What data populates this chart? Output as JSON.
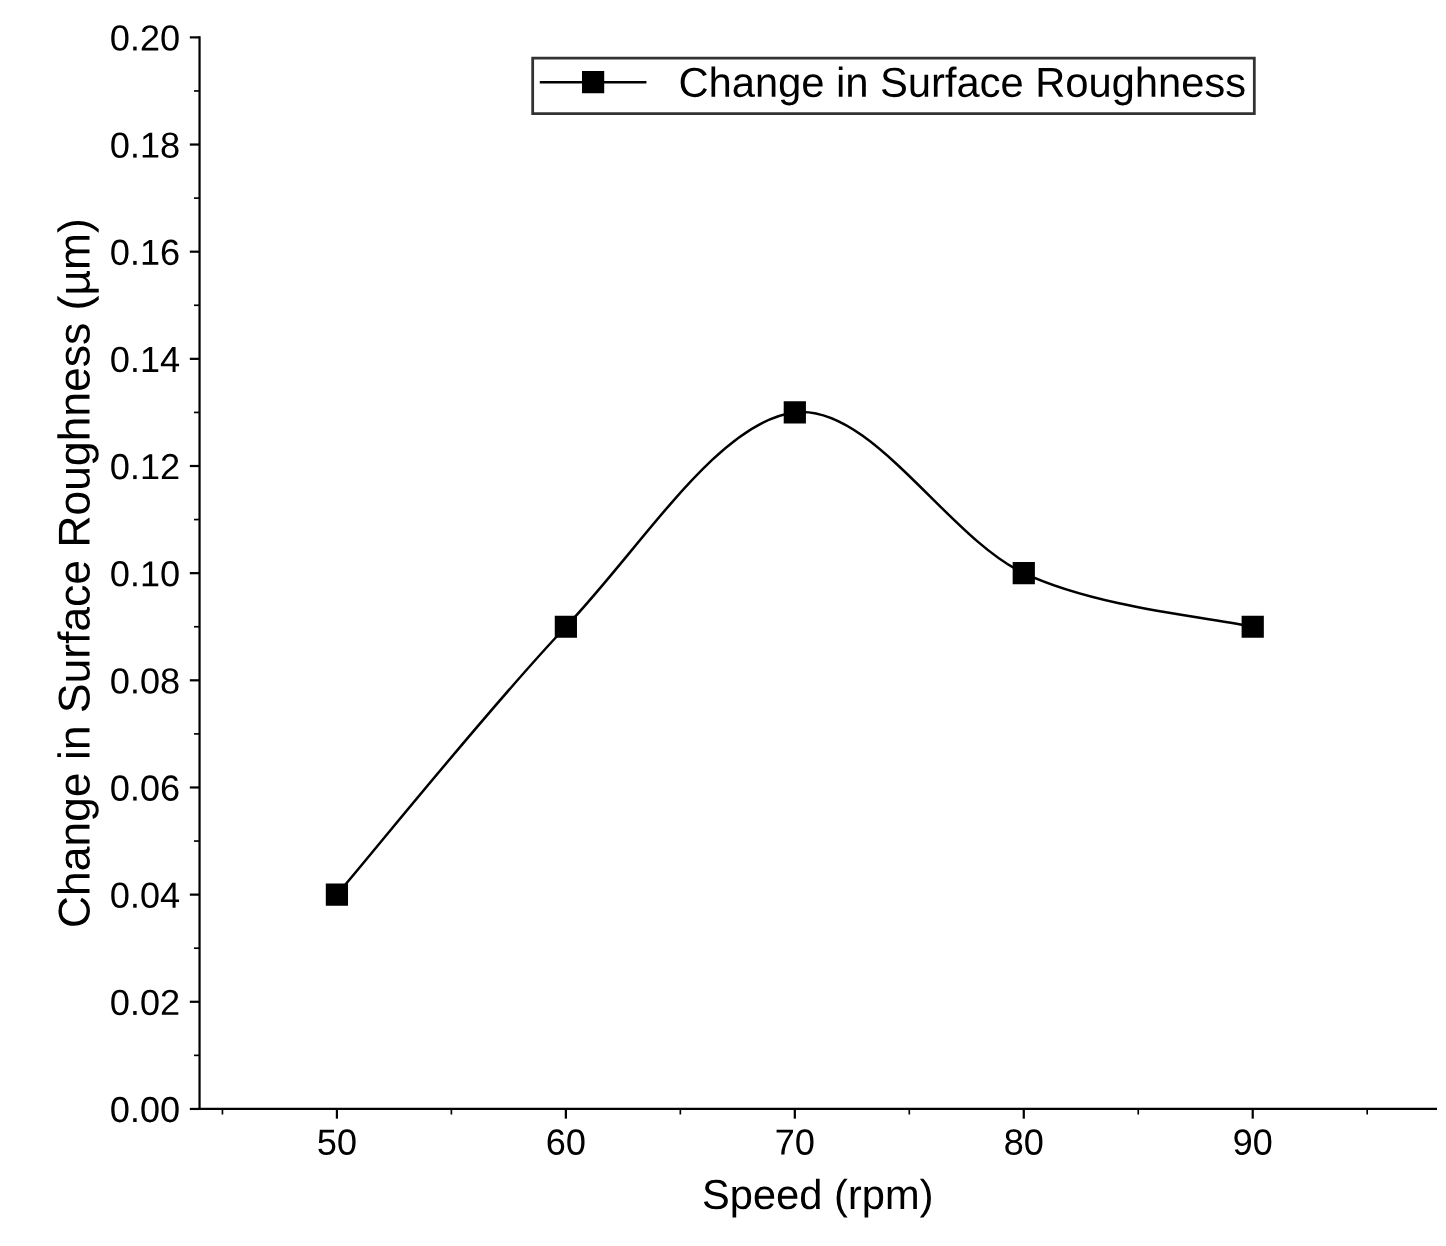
{
  "chart_data": {
    "type": "line",
    "xlabel": "Speed (rpm)",
    "ylabel": "Change in Surface Roughness (µm)",
    "x": [
      50,
      60,
      70,
      80,
      90
    ],
    "series": [
      {
        "name": "Change in Surface Roughness",
        "color": "#000000",
        "values": [
          0.04,
          0.09,
          0.13,
          0.1,
          0.09
        ]
      }
    ],
    "xlim": [
      44,
      98
    ],
    "xticks": [
      50,
      60,
      70,
      80,
      90
    ],
    "ylim": [
      0,
      0.2
    ],
    "yticks": [
      {
        "value": 0,
        "label": "0.00"
      },
      {
        "value": 0.02,
        "label": "0.02"
      },
      {
        "value": 0.04,
        "label": "0.04"
      },
      {
        "value": 0.06,
        "label": "0.06"
      },
      {
        "value": 0.08,
        "label": "0.08"
      },
      {
        "value": 0.1,
        "label": "0.10"
      },
      {
        "value": 0.12,
        "label": "0.12"
      },
      {
        "value": 0.14,
        "label": "0.14"
      },
      {
        "value": 0.16,
        "label": "0.16"
      },
      {
        "value": 0.18,
        "label": "0.18"
      },
      {
        "value": 0.2,
        "label": "0.20"
      }
    ],
    "marker": "square",
    "line_style": "solid",
    "grid": false,
    "legend": "top right"
  }
}
